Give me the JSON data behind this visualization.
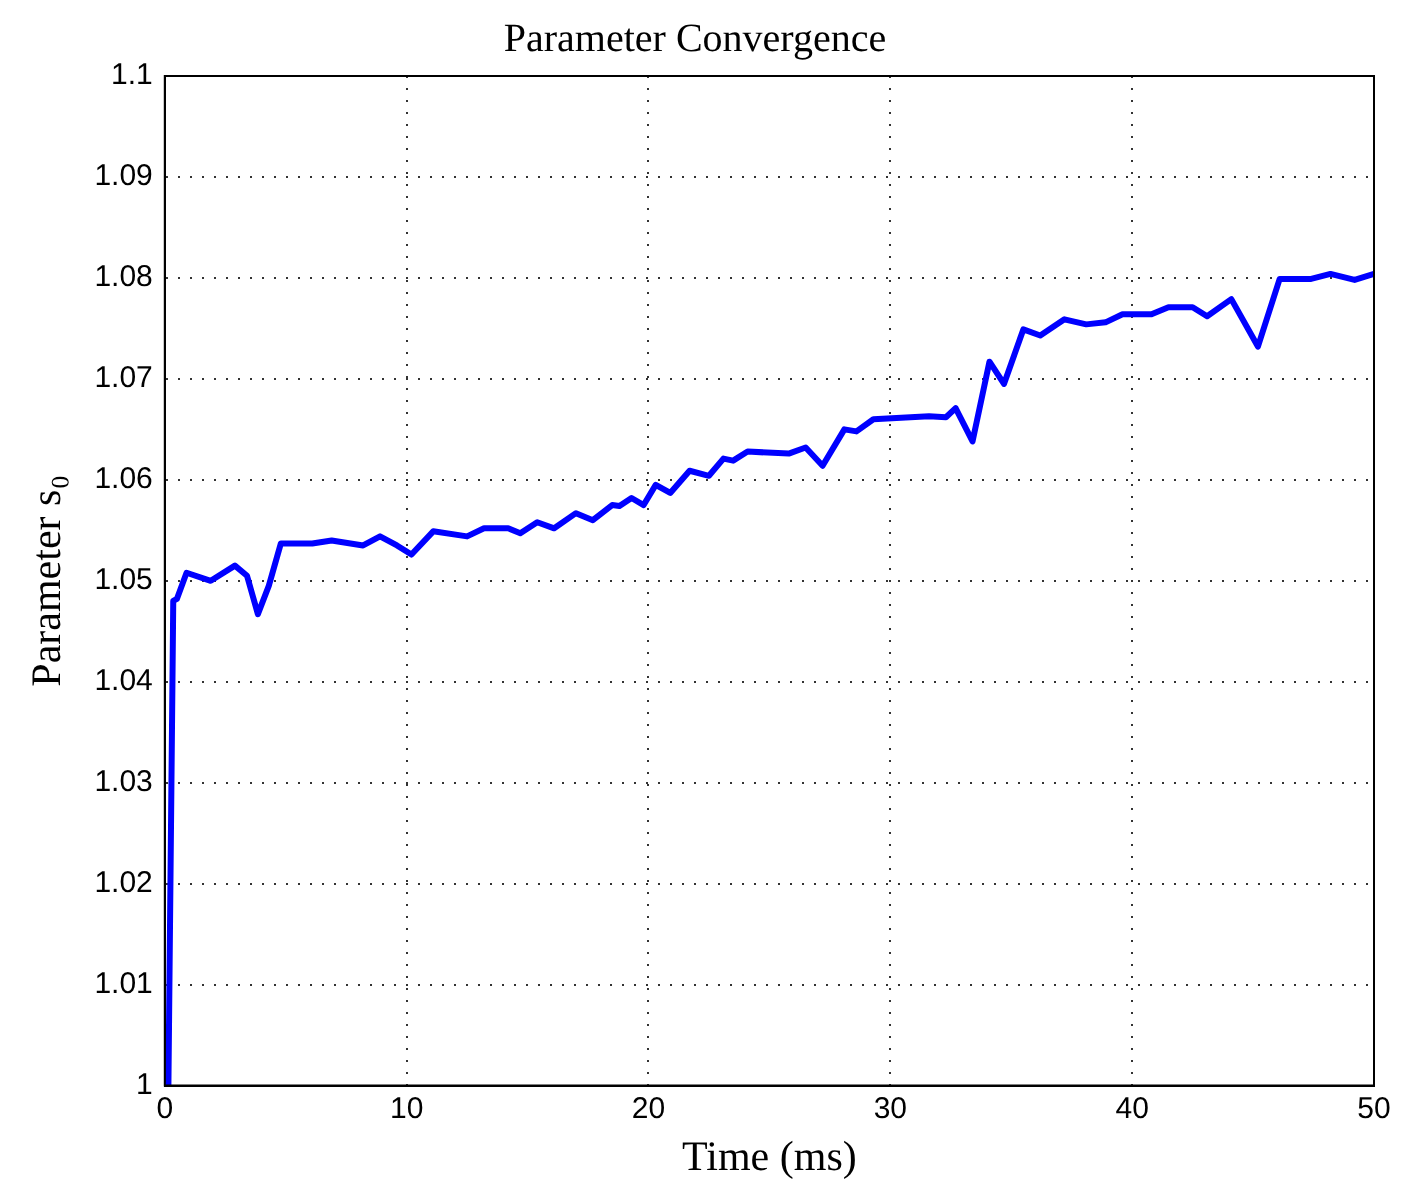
{
  "chart_data": {
    "type": "line",
    "title": "Parameter Convergence",
    "xlabel": "Time (ms)",
    "ylabel": "Parameter s₀",
    "xlim": [
      0,
      50
    ],
    "ylim": [
      1,
      1.1
    ],
    "xticks": [
      0,
      10,
      20,
      30,
      40,
      50
    ],
    "yticks": [
      1,
      1.01,
      1.02,
      1.03,
      1.04,
      1.05,
      1.06,
      1.07,
      1.08,
      1.09,
      1.1
    ],
    "grid": true,
    "legend": false,
    "marker": "none",
    "line_style": "solid",
    "series": [
      {
        "color": "#0000ff",
        "x": [
          0,
          0.15,
          0.35,
          0.5,
          0.9,
          1.9,
          2.9,
          3.4,
          3.85,
          4.3,
          4.8,
          6.1,
          6.9,
          8.2,
          8.9,
          9.6,
          10.2,
          11.1,
          12.5,
          13.2,
          14.2,
          14.7,
          15.4,
          16.1,
          17.0,
          17.7,
          18.5,
          18.8,
          19.3,
          19.8,
          20.3,
          20.9,
          21.7,
          22.5,
          23.1,
          23.5,
          24.1,
          25.8,
          26.5,
          27.2,
          28.1,
          28.6,
          29.3,
          31.6,
          32.3,
          32.7,
          33.4,
          34.1,
          34.7,
          35.5,
          36.2,
          37.2,
          38.1,
          38.9,
          39.6,
          40.8,
          41.5,
          42.5,
          43.1,
          44.1,
          45.2,
          46.1,
          47.4,
          48.2,
          49.2,
          50
        ],
        "values": [
          1.0,
          1.0,
          1.048,
          1.0482,
          1.0508,
          1.05,
          1.0515,
          1.0505,
          1.0467,
          1.0495,
          1.0537,
          1.0537,
          1.054,
          1.0535,
          1.0544,
          1.0535,
          1.0526,
          1.0549,
          1.0544,
          1.0552,
          1.0552,
          1.0547,
          1.0558,
          1.0552,
          1.0567,
          1.056,
          1.0575,
          1.0574,
          1.0582,
          1.0575,
          1.0595,
          1.0587,
          1.0609,
          1.0604,
          1.0621,
          1.0619,
          1.0628,
          1.0626,
          1.0632,
          1.0614,
          1.065,
          1.0648,
          1.066,
          1.0663,
          1.0662,
          1.0671,
          1.0638,
          1.0717,
          1.0695,
          1.0749,
          1.0743,
          1.0759,
          1.0754,
          1.0756,
          1.0764,
          1.0764,
          1.0771,
          1.0771,
          1.0762,
          1.0779,
          1.0732,
          1.0799,
          1.0799,
          1.0804,
          1.0798,
          1.0804
        ]
      }
    ]
  }
}
